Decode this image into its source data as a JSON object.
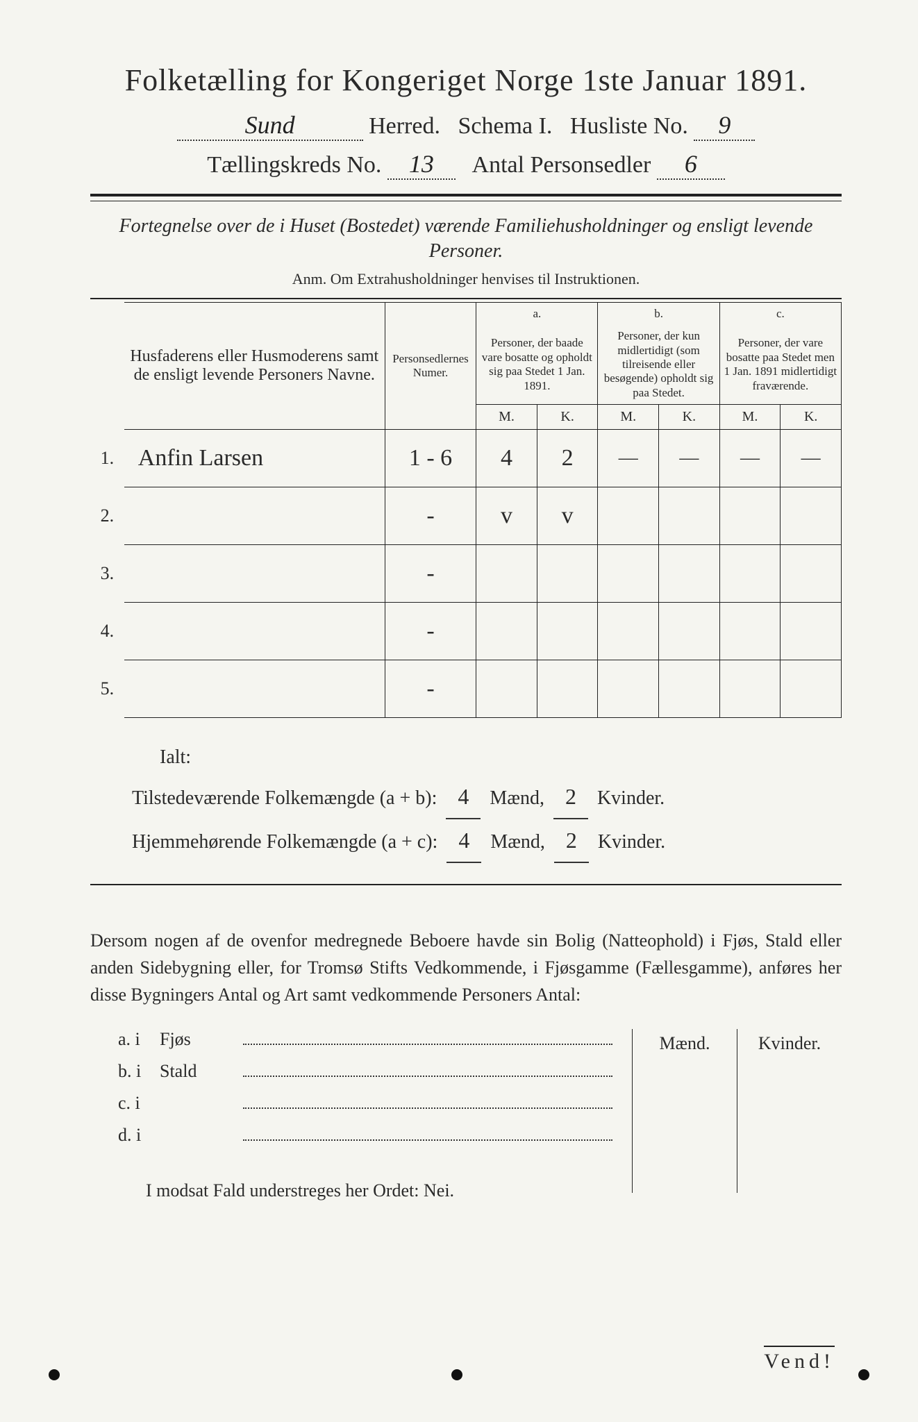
{
  "title": "Folketælling for Kongeriget Norge 1ste Januar 1891.",
  "header": {
    "herred_label": "Herred.",
    "schema_label": "Schema I.",
    "husliste_label": "Husliste No.",
    "herred_value": "Sund",
    "husliste_value": "9",
    "kreds_label": "Tællingskreds No.",
    "kreds_value": "13",
    "antal_label": "Antal Personsedler",
    "antal_value": "6"
  },
  "subtitle": "Fortegnelse over de i Huset (Bostedet) værende Familiehusholdninger og ensligt levende Personer.",
  "anm": "Anm.  Om Extrahusholdninger henvises til Instruktionen.",
  "columns": {
    "name": "Husfaderens eller Husmoderens samt de ensligt levende Personers Navne.",
    "num": "Personsedlernes Numer.",
    "a_top": "a.",
    "a": "Personer, der baade vare bosatte og opholdt sig paa Stedet 1 Jan. 1891.",
    "b_top": "b.",
    "b": "Personer, der kun midlertidigt (som tilreisende eller besøgende) opholdt sig paa Stedet.",
    "c_top": "c.",
    "c": "Personer, der vare bosatte paa Stedet men 1 Jan. 1891 midlertidigt fraværende.",
    "m": "M.",
    "k": "K."
  },
  "rows": [
    {
      "n": "1.",
      "name": "Anfin Larsen",
      "num": "1 - 6",
      "am": "4",
      "ak": "2",
      "bm": "—",
      "bk": "—",
      "cm": "—",
      "ck": "—"
    },
    {
      "n": "2.",
      "name": "",
      "num": "-",
      "am": "v",
      "ak": "v",
      "bm": "",
      "bk": "",
      "cm": "",
      "ck": ""
    },
    {
      "n": "3.",
      "name": "",
      "num": "-",
      "am": "",
      "ak": "",
      "bm": "",
      "bk": "",
      "cm": "",
      "ck": ""
    },
    {
      "n": "4.",
      "name": "",
      "num": "-",
      "am": "",
      "ak": "",
      "bm": "",
      "bk": "",
      "cm": "",
      "ck": ""
    },
    {
      "n": "5.",
      "name": "",
      "num": "-",
      "am": "",
      "ak": "",
      "bm": "",
      "bk": "",
      "cm": "",
      "ck": ""
    }
  ],
  "totals": {
    "ialt": "Ialt:",
    "tilstede_label": "Tilstedeværende Folkemængde (a + b):",
    "hjemme_label": "Hjemmehørende Folkemængde (a + c):",
    "maend": "Mænd,",
    "kvinder": "Kvinder.",
    "tilstede_m": "4",
    "tilstede_k": "2",
    "hjemme_m": "4",
    "hjemme_k": "2"
  },
  "para": "Dersom nogen af de ovenfor medregnede Beboere havde sin Bolig (Natteophold) i Fjøs, Stald eller anden Sidebygning eller, for Tromsø Stifts Vedkommende, i Fjøsgamme (Fællesgamme), anføres her disse Bygningers Antal og Art samt vedkommende Personers Antal:",
  "outb": {
    "col_m": "Mænd.",
    "col_k": "Kvinder.",
    "rows": [
      {
        "p": "a.  i",
        "label": "Fjøs"
      },
      {
        "p": "b.  i",
        "label": "Stald"
      },
      {
        "p": "c.  i",
        "label": ""
      },
      {
        "p": "d.  i",
        "label": ""
      }
    ]
  },
  "nei": "I modsat Fald understreges her Ordet: Nei.",
  "nei_prefix": "I modsat Fald understreges her Ordet: ",
  "nei_word": "Nei.",
  "vend": "Vend!",
  "colors": {
    "paper": "#f5f5f0",
    "ink": "#2a2a2a",
    "bg": "#d8dad8"
  }
}
